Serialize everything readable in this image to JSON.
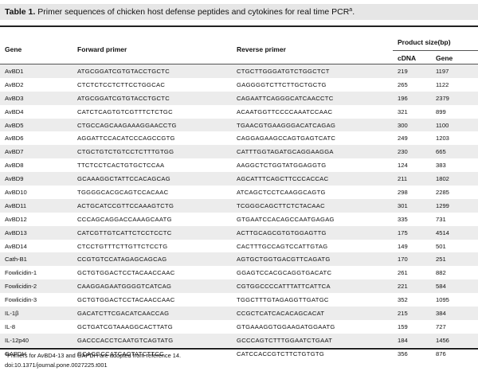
{
  "title": {
    "label": "Table 1.",
    "text": "Primer sequences of chicken host defense peptides and cytokines for real time PCR",
    "sup": "a",
    "end": "."
  },
  "headers": {
    "gene": "Gene",
    "forward": "Forward primer",
    "reverse": "Reverse primer",
    "product": "Product size(bp)",
    "cdna": "cDNA",
    "gene_sub": "Gene"
  },
  "rows": [
    {
      "gene": "AvBD1",
      "forward": "ATGCGGATCGTGTACCTGCTC",
      "reverse": "CTGCTTGGGATGTCTGGCTCT",
      "cdna": "219",
      "genomic": "1197"
    },
    {
      "gene": "AvBD2",
      "forward": "CTCTCTCCTCTTCCTGGCAC",
      "reverse": "GAGGGGTCTTCTTGCTGCTG",
      "cdna": "265",
      "genomic": "1122"
    },
    {
      "gene": "AvBD3",
      "forward": "ATGCGGATCGTGTACCTGCTC",
      "reverse": "CAGAATTCAGGGCATCAACCTC",
      "cdna": "196",
      "genomic": "2379"
    },
    {
      "gene": "AvBD4",
      "forward": "CATCTCAGTGTCGTTTCTCTGC",
      "reverse": "ACAATGGTTCCCCAAATCCAAC",
      "cdna": "321",
      "genomic": "899"
    },
    {
      "gene": "AvBD5",
      "forward": "CTGCCAGCAAGAAAGGAACCTG",
      "reverse": "TGAACGTGAAGGGACATCAGAG",
      "cdna": "300",
      "genomic": "1100"
    },
    {
      "gene": "AvBD6",
      "forward": "AGGATTCCACATCCCAGCCGTG",
      "reverse": "CAGGAGAAGCCAGTGAGTCATC",
      "cdna": "249",
      "genomic": "1203"
    },
    {
      "gene": "AvBD7",
      "forward": "CTGCTGTCTGTCCTCTTTGTGG",
      "reverse": "CATTTGGTAGATGCAGGAAGGA",
      "cdna": "230",
      "genomic": "665"
    },
    {
      "gene": "AvBD8",
      "forward": "TTCTCCTCACTGTGCTCCAA",
      "reverse": "AAGGCTCTGGTATGGAGGTG",
      "cdna": "124",
      "genomic": "383"
    },
    {
      "gene": "AvBD9",
      "forward": "GCAAAGGCTATTCCACAGCAG",
      "reverse": "AGCATTTCAGCTTCCCACCAC",
      "cdna": "211",
      "genomic": "1802"
    },
    {
      "gene": "AvBD10",
      "forward": "TGGGGCACGCAGTCCACAAC",
      "reverse": "ATCAGCTCCTCAAGGCAGTG",
      "cdna": "298",
      "genomic": "2285"
    },
    {
      "gene": "AvBD11",
      "forward": "ACTGCATCCGTTCCAAAGTCTG",
      "reverse": "TCGGGCAGCTTCTCTACAAC",
      "cdna": "301",
      "genomic": "1299"
    },
    {
      "gene": "AvBD12",
      "forward": "CCCAGCAGGACCAAAGCAATG",
      "reverse": "GTGAATCCACAGCCAATGAGAG",
      "cdna": "335",
      "genomic": "731"
    },
    {
      "gene": "AvBD13",
      "forward": "CATCGTTGTCATTCTCCTCCTC",
      "reverse": "ACTTGCAGCGTGTGGAGTTG",
      "cdna": "175",
      "genomic": "4514"
    },
    {
      "gene": "AvBD14",
      "forward": "CTCCTGTTTCTTGTTCTCCTG",
      "reverse": "CACTTTGCCAGTCCATTGTAG",
      "cdna": "149",
      "genomic": "501"
    },
    {
      "gene": "Cath-B1",
      "forward": "CCGTGTCCATAGAGCAGCAG",
      "reverse": "AGTGCTGGTGACGTTCAGATG",
      "cdna": "170",
      "genomic": "251"
    },
    {
      "gene": "Fowlicidin-1",
      "forward": "GCTGTGGACTCCTACAACCAAC",
      "reverse": "GGAGTCCACGCAGGTGACATC",
      "cdna": "261",
      "genomic": "882"
    },
    {
      "gene": "Fowlicidin-2",
      "forward": "CAAGGAGAATGGGGTCATCAG",
      "reverse": "CGTGGCCCCATTTATTCATTCA",
      "cdna": "221",
      "genomic": "584"
    },
    {
      "gene": "Fowlicidin-3",
      "forward": "GCTGTGGACTCCTACAACCAAC",
      "reverse": "TGGCTTTGTAGAGGTTGATGC",
      "cdna": "352",
      "genomic": "1095"
    },
    {
      "gene": "IL-1β",
      "forward": "GACATCTTCGACATCAACCAG",
      "reverse": "CCGCTCATCACACAGCACAT",
      "cdna": "215",
      "genomic": "384"
    },
    {
      "gene": "IL-8",
      "forward": "GCTGATCGTAAAGGCACTTATG",
      "reverse": "GTGAAAGGTGGAAGATGGAATG",
      "cdna": "159",
      "genomic": "727"
    },
    {
      "gene": "IL-12p40",
      "forward": "GACCCACCTCAATGTCAGTATG",
      "reverse": "GCCCAGTCTTTGGAATCTGAAT",
      "cdna": "184",
      "genomic": "1456"
    },
    {
      "gene": "GAPDH",
      "forward": "GCACGCCATCACTATCTTCC",
      "reverse": "CATCCACCGTCTTCTGTGTG",
      "cdna": "356",
      "genomic": "876"
    }
  ],
  "footnote": {
    "sup": "a",
    "text": "Primers for AvBD4-13 and GAPDH are adopted from reference 14.",
    "doi": "doi:10.1371/journal.pone.0027225.t001"
  }
}
